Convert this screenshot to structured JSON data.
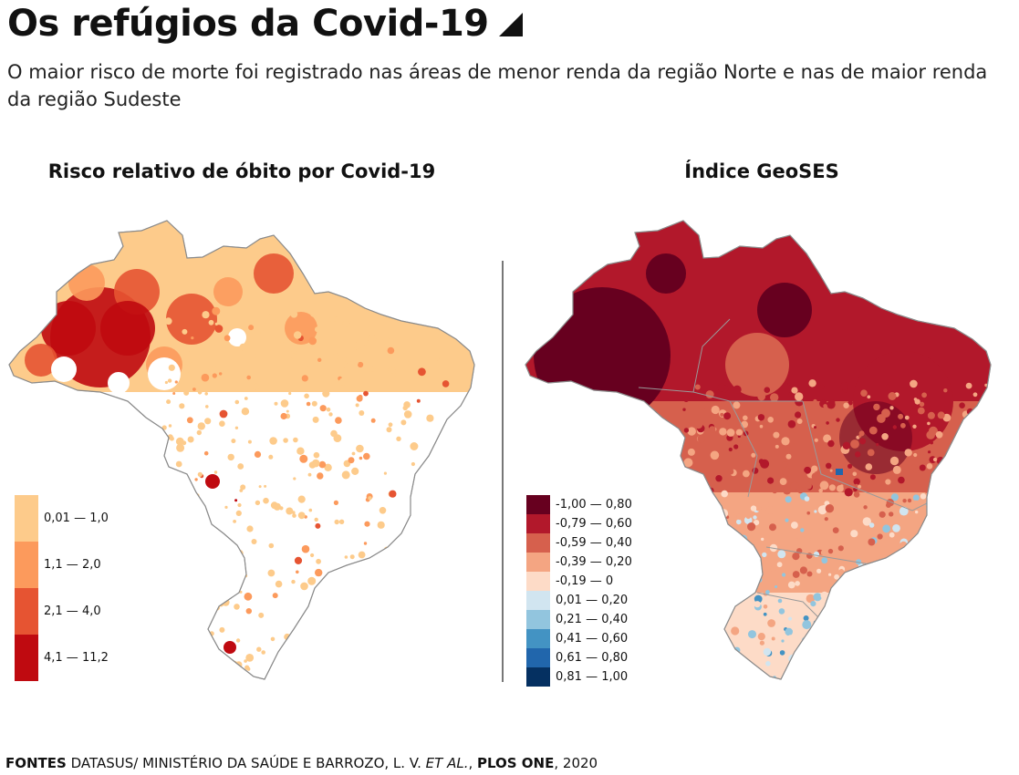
{
  "header": {
    "title": "Os refúgios da Covid-19",
    "subtitle": "O maior risco de morte foi registrado nas áreas de menor renda da região Norte e nas de maior renda da região Sudeste",
    "arrow_icon": "triangle-corner-icon"
  },
  "maps": {
    "left": {
      "heading": "Risco relativo de óbito por Covid-19",
      "legend": [
        {
          "label": "0,01 — 1,0",
          "color": "#fdcb8b"
        },
        {
          "label": "1,1  —  2,0",
          "color": "#fc9a5c"
        },
        {
          "label": "2,1 —  4,0",
          "color": "#e65432"
        },
        {
          "label": "4,1 —  11,2",
          "color": "#bf0a10"
        }
      ]
    },
    "right": {
      "heading": "Índice GeoSES",
      "legend": [
        {
          "label": "-1,00  — 0,80",
          "color": "#67001f"
        },
        {
          "label": "-0,79 — 0,60",
          "color": "#b2182b"
        },
        {
          "label": "-0,59 — 0,40",
          "color": "#d6604d"
        },
        {
          "label": "-0,39 — 0,20",
          "color": "#f4a582"
        },
        {
          "label": "-0,19 — 0",
          "color": "#fddbc7"
        },
        {
          "label": "0,01 — 0,20",
          "color": "#d1e5f0"
        },
        {
          "label": "0,21 — 0,40",
          "color": "#92c5de"
        },
        {
          "label": "0,41 — 0,60",
          "color": "#4393c3"
        },
        {
          "label": "0,61 — 0,80",
          "color": "#2166ac"
        },
        {
          "label": "0,81 — 1,00",
          "color": "#053061"
        }
      ]
    }
  },
  "source": {
    "label": "FONTES",
    "part1": " DATASUS/ MINISTÉRIO DA SAÚDE E BARROZO, L. V. ",
    "italic": "ET AL.",
    "part2": ", ",
    "bold2": "PLOS ONE",
    "part3": ", 2020"
  }
}
